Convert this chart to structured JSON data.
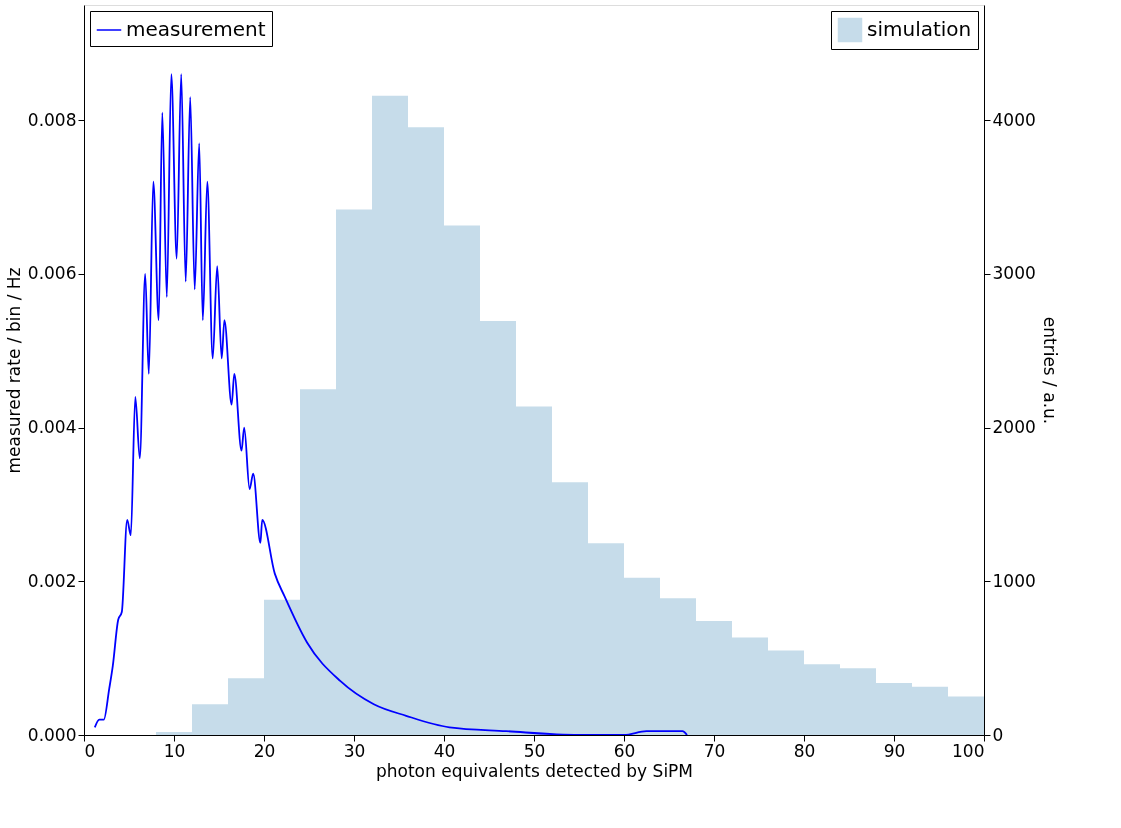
{
  "chart_data": {
    "type": "line",
    "xlabel": "photon equivalents detected by SiPM",
    "ylabel": "measured rate / bin / Hz",
    "y2label": "entries / a.u.",
    "xlim": [
      0,
      100
    ],
    "xticks": [
      0,
      10,
      20,
      30,
      40,
      50,
      60,
      70,
      80,
      90,
      100
    ],
    "ylim": [
      0,
      0.0095
    ],
    "yticks": [
      {
        "value": 0,
        "label": "0.000"
      },
      {
        "value": 0.002,
        "label": "0.002"
      },
      {
        "value": 0.004,
        "label": "0.004"
      },
      {
        "value": 0.006,
        "label": "0.006"
      },
      {
        "value": 0.008,
        "label": "0.008"
      }
    ],
    "y2lim": [
      0,
      4750
    ],
    "y2ticks": [
      0,
      1000,
      2000,
      3000,
      4000
    ],
    "grid": false,
    "legend": "top",
    "series": [
      {
        "name": "measurement",
        "color": "#0000ff",
        "x": [
          1.2,
          1.7,
          2.2,
          2.8,
          3.2,
          3.8,
          4.2,
          4.8,
          5.2,
          5.7,
          6.2,
          6.8,
          7.2,
          7.7,
          8.3,
          8.7,
          9.2,
          9.7,
          10.3,
          10.8,
          11.3,
          11.8,
          12.3,
          12.8,
          13.2,
          13.7,
          14.3,
          14.8,
          15.3,
          15.6,
          16.4,
          16.7,
          17.5,
          17.8,
          18.4,
          18.8,
          19.6,
          19.8,
          21.2,
          22.3,
          24.8,
          28.5,
          32.2,
          35.8,
          40.6,
          46.9,
          55,
          60,
          62.5,
          65,
          66.5,
          67
        ],
        "values": [
          0.0001,
          0.0002,
          0.0002,
          0.0006,
          0.0009,
          0.0015,
          0.0016,
          0.0028,
          0.0026,
          0.0044,
          0.0036,
          0.006,
          0.0047,
          0.0072,
          0.0054,
          0.0081,
          0.0057,
          0.0086,
          0.0062,
          0.0086,
          0.0059,
          0.0083,
          0.0058,
          0.0077,
          0.0054,
          0.0072,
          0.0049,
          0.0061,
          0.0049,
          0.0054,
          0.0043,
          0.0047,
          0.0037,
          0.004,
          0.0032,
          0.0034,
          0.0025,
          0.0028,
          0.0021,
          0.0018,
          0.0012,
          0.0007,
          0.0004,
          0.00025,
          0.0001,
          5e-05,
          0,
          0,
          5e-05,
          5e-05,
          5e-05,
          0
        ]
      },
      {
        "name": "simulation",
        "type": "histogram",
        "axis": "y2",
        "color": "#c6dcea",
        "bins": [
          8,
          12,
          16,
          20,
          24,
          28,
          32,
          36,
          40,
          44,
          48,
          52,
          56,
          60,
          64,
          68,
          72,
          76,
          80,
          84,
          88,
          92,
          96,
          100
        ],
        "values": [
          20,
          200,
          370,
          880,
          2250,
          3420,
          4160,
          3955,
          3315,
          2694,
          2138,
          1645,
          1248,
          1024,
          890,
          742,
          634,
          550,
          461,
          435,
          339,
          314,
          250
        ]
      }
    ]
  }
}
